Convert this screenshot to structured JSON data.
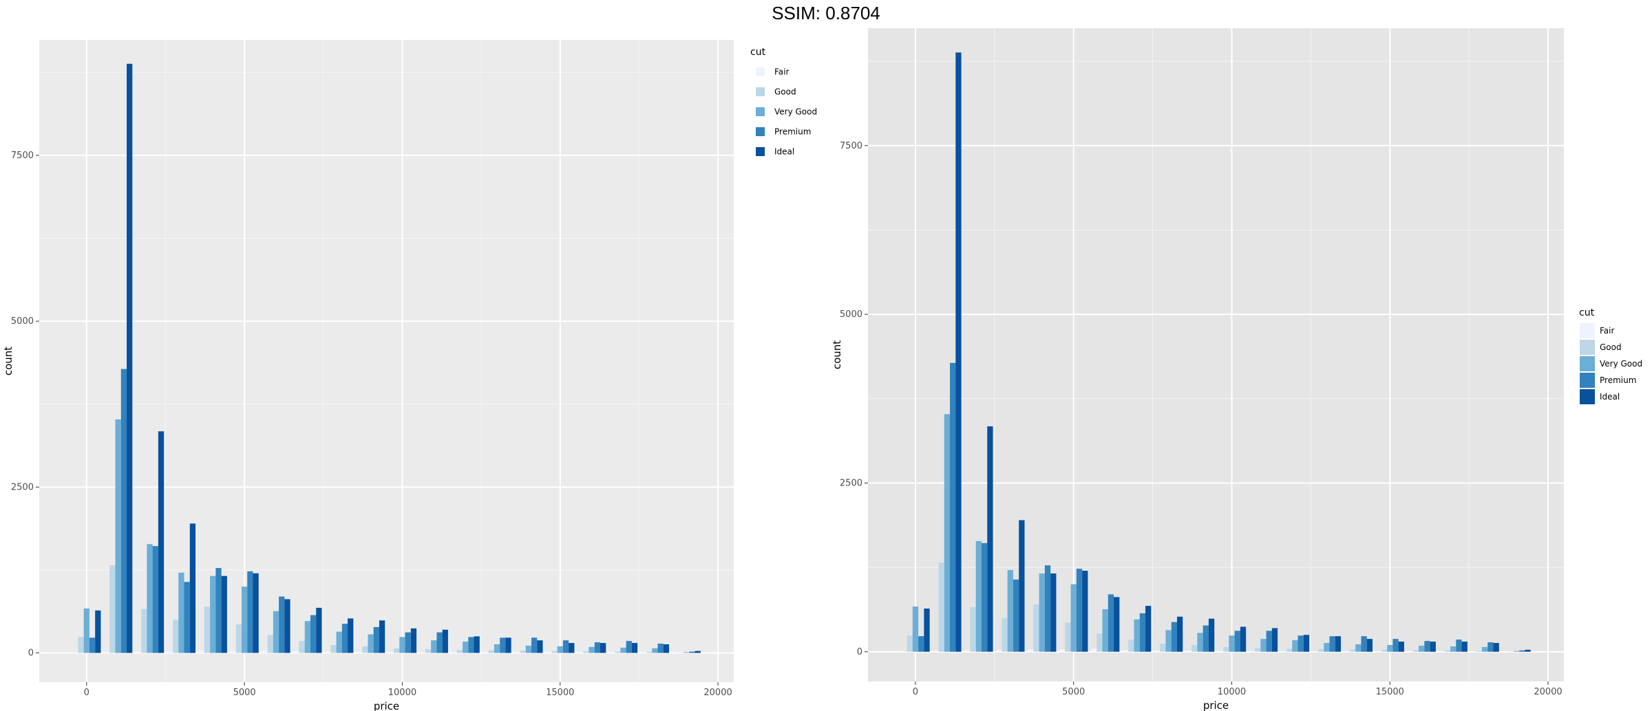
{
  "header": {
    "title": "SSIM: 0.8704"
  },
  "chart_data": [
    {
      "type": "bar",
      "position": "dodge",
      "xlabel": "price",
      "ylabel": "count",
      "x_ticks": [
        0,
        5000,
        10000,
        15000,
        20000
      ],
      "y_ticks": [
        0,
        2500,
        5000,
        7500
      ],
      "xlim": [
        -1500,
        20500
      ],
      "ylim": [
        -440,
        9240
      ],
      "bin_width": 1000,
      "legend": {
        "title": "cut",
        "position": "top-right"
      },
      "colors": [
        "#eff3ff",
        "#bdd7e7",
        "#6baed6",
        "#3182bd",
        "#08519c"
      ],
      "panel_bg": "#ebebeb",
      "categories": [
        0,
        1000,
        2000,
        3000,
        4000,
        5000,
        6000,
        7000,
        8000,
        9000,
        10000,
        11000,
        12000,
        13000,
        14000,
        15000,
        16000,
        17000,
        18000,
        19000
      ],
      "series": [
        {
          "name": "Fair",
          "values": [
            10,
            20,
            25,
            30,
            40,
            35,
            45,
            30,
            25,
            20,
            15,
            12,
            10,
            8,
            7,
            6,
            5,
            5,
            4,
            1
          ]
        },
        {
          "name": "Good",
          "values": [
            240,
            1320,
            660,
            500,
            700,
            430,
            270,
            180,
            120,
            100,
            70,
            55,
            45,
            40,
            35,
            30,
            25,
            20,
            15,
            3
          ]
        },
        {
          "name": "Very Good",
          "values": [
            670,
            3520,
            1640,
            1210,
            1160,
            1000,
            630,
            480,
            320,
            280,
            240,
            190,
            170,
            130,
            110,
            100,
            90,
            80,
            70,
            10
          ]
        },
        {
          "name": "Premium",
          "values": [
            230,
            4280,
            1610,
            1070,
            1280,
            1230,
            850,
            570,
            440,
            390,
            310,
            310,
            240,
            230,
            230,
            190,
            160,
            180,
            140,
            20
          ]
        },
        {
          "name": "Ideal",
          "values": [
            640,
            8880,
            3340,
            1950,
            1160,
            1200,
            810,
            680,
            520,
            490,
            370,
            350,
            250,
            230,
            190,
            150,
            150,
            150,
            130,
            30
          ]
        }
      ]
    },
    {
      "type": "bar",
      "position": "dodge",
      "xlabel": "price",
      "ylabel": "count",
      "x_ticks": [
        0,
        5000,
        10000,
        15000,
        20000
      ],
      "y_ticks": [
        0,
        2500,
        5000,
        7500
      ],
      "xlim": [
        -1500,
        20500
      ],
      "ylim": [
        -440,
        9240
      ],
      "bin_width": 1000,
      "legend": {
        "title": "cut",
        "position": "right"
      },
      "colors": [
        "#eff3ff",
        "#bdd7e7",
        "#6baed6",
        "#3182bd",
        "#08519c"
      ],
      "panel_bg": "#e5e5e5",
      "categories": [
        0,
        1000,
        2000,
        3000,
        4000,
        5000,
        6000,
        7000,
        8000,
        9000,
        10000,
        11000,
        12000,
        13000,
        14000,
        15000,
        16000,
        17000,
        18000,
        19000
      ],
      "series": [
        {
          "name": "Fair",
          "values": [
            10,
            20,
            25,
            30,
            40,
            35,
            45,
            30,
            25,
            20,
            15,
            12,
            10,
            8,
            7,
            6,
            5,
            5,
            4,
            1
          ]
        },
        {
          "name": "Good",
          "values": [
            240,
            1320,
            660,
            500,
            700,
            430,
            270,
            180,
            120,
            100,
            70,
            55,
            45,
            40,
            35,
            30,
            25,
            20,
            15,
            3
          ]
        },
        {
          "name": "Very Good",
          "values": [
            670,
            3520,
            1640,
            1210,
            1160,
            1000,
            630,
            480,
            320,
            280,
            240,
            190,
            170,
            130,
            110,
            100,
            90,
            80,
            70,
            10
          ]
        },
        {
          "name": "Premium",
          "values": [
            230,
            4280,
            1610,
            1070,
            1280,
            1230,
            850,
            570,
            440,
            390,
            310,
            310,
            240,
            230,
            230,
            190,
            160,
            180,
            140,
            20
          ]
        },
        {
          "name": "Ideal",
          "values": [
            640,
            8880,
            3340,
            1950,
            1160,
            1200,
            810,
            680,
            520,
            490,
            370,
            350,
            250,
            230,
            190,
            150,
            150,
            150,
            130,
            30
          ]
        }
      ]
    }
  ]
}
